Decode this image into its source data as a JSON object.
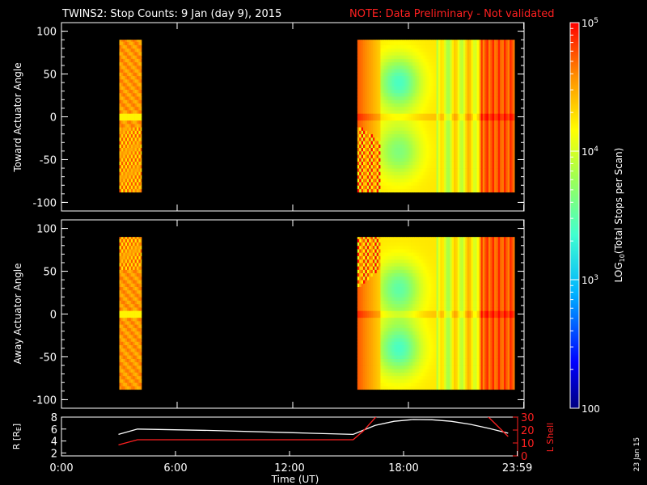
{
  "header": {
    "title": "TWINS2: Stop Counts:  9 Jan (day   9), 2015",
    "note": "NOTE: Data Preliminary - Not validated",
    "note_color": "#ff2020"
  },
  "footer": {
    "date_stamp": "23 Jan 15"
  },
  "chart_data": [
    {
      "id": "toward",
      "type": "heatmap",
      "ylabel": "Toward Actuator Angle",
      "ylim": [
        -110,
        110
      ],
      "yticks": [
        100,
        50,
        0,
        -50,
        -100
      ],
      "xlim": [
        0,
        24
      ],
      "data_extent_y": [
        -88,
        90
      ],
      "data_blocks": [
        {
          "x_start": 3.0,
          "x_end": 4.15
        },
        {
          "x_start": 15.35,
          "x_end": 23.5
        }
      ],
      "colorscale": "log10",
      "regions": [
        {
          "x_range": [
            3.0,
            4.15
          ],
          "y_range": [
            -88,
            90
          ],
          "log10_value": 4.6,
          "note": "orange with yellow/cyan streaks"
        },
        {
          "x_range": [
            15.35,
            16.5
          ],
          "y_range": [
            -88,
            -10
          ],
          "log10_value": 4.7,
          "note": "striped orange/green pattern"
        },
        {
          "x_range": [
            16.5,
            19.5
          ],
          "y_range": [
            -88,
            90
          ],
          "log10_value": 3.6,
          "note": "cyan minimum near y=40"
        },
        {
          "x_range": [
            19.5,
            22.0
          ],
          "y_range": [
            -88,
            90
          ],
          "log10_value": 4.1,
          "note": "yellow-green bands"
        },
        {
          "x_range": [
            22.0,
            23.5
          ],
          "y_range": [
            -88,
            90
          ],
          "log10_value": 4.8,
          "note": "orange/red"
        }
      ]
    },
    {
      "id": "away",
      "type": "heatmap",
      "ylabel": "Away Actuator Angle",
      "ylim": [
        -110,
        110
      ],
      "yticks": [
        100,
        50,
        0,
        -50,
        -100
      ],
      "xlim": [
        0,
        24
      ],
      "data_extent_y": [
        -88,
        90
      ],
      "data_blocks": [
        {
          "x_start": 3.0,
          "x_end": 4.15
        },
        {
          "x_start": 15.35,
          "x_end": 23.5
        }
      ],
      "colorscale": "log10",
      "regions": [
        {
          "x_range": [
            3.0,
            4.15
          ],
          "y_range": [
            -88,
            90
          ],
          "log10_value": 4.6,
          "note": "orange with striped top"
        },
        {
          "x_range": [
            15.35,
            16.5
          ],
          "y_range": [
            30,
            90
          ],
          "log10_value": 4.7,
          "note": "striped orange/green pattern"
        },
        {
          "x_range": [
            16.5,
            19.5
          ],
          "y_range": [
            -88,
            90
          ],
          "log10_value": 3.6,
          "note": "cyan minima near y=30 and y=-40"
        },
        {
          "x_range": [
            19.5,
            22.0
          ],
          "y_range": [
            -88,
            90
          ],
          "log10_value": 4.1,
          "note": "yellow-green bands"
        },
        {
          "x_range": [
            22.0,
            23.5
          ],
          "y_range": [
            -88,
            90
          ],
          "log10_value": 4.8,
          "note": "orange/red"
        }
      ]
    },
    {
      "id": "orbit",
      "type": "line",
      "xlabel": "Time (UT)",
      "xticks": [
        0,
        6,
        12,
        18,
        23.983
      ],
      "xtick_labels": [
        "0:00",
        "6:00",
        "12:00",
        "18:00",
        "23:59"
      ],
      "xlim": [
        0,
        24
      ],
      "left_axis": {
        "label": "R [R",
        "label_sub": "E",
        "label_close": "]",
        "ylim": [
          1.5,
          8
        ],
        "yticks": [
          2,
          4,
          6,
          8
        ]
      },
      "right_axis": {
        "label": "L Shell",
        "ylim": [
          0,
          30
        ],
        "yticks": [
          0,
          10,
          20,
          30
        ],
        "color": "#ff2020"
      },
      "series": [
        {
          "axis": "left",
          "color": "#ffffff",
          "x": [
            3.0,
            4.0,
            8.0,
            12.0,
            15.35,
            16.5,
            17.5,
            18.5,
            19.5,
            20.5,
            21.5,
            22.5,
            23.5
          ],
          "y": [
            5.1,
            6.0,
            5.75,
            5.4,
            5.1,
            6.6,
            7.3,
            7.6,
            7.55,
            7.3,
            6.8,
            6.1,
            5.3
          ]
        },
        {
          "axis": "right",
          "color": "#ff2020",
          "x": [
            3.0,
            4.0,
            8.0,
            12.0,
            15.35,
            15.9,
            16.6,
            22.4,
            23.5
          ],
          "y": [
            8.5,
            12.5,
            12.5,
            12.5,
            12.5,
            19.5,
            31,
            31,
            15
          ]
        }
      ]
    }
  ],
  "colorbar": {
    "label_prefix": "LOG",
    "label_sub": "10",
    "label_rest": "(Total Stops per Scan)",
    "range_log10": [
      2,
      5
    ],
    "tick_labels": [
      {
        "log10": 5,
        "text": "10",
        "sup": "5"
      },
      {
        "log10": 4,
        "text": "10",
        "sup": "4"
      },
      {
        "log10": 3,
        "text": "10",
        "sup": "3"
      },
      {
        "log10": 2,
        "text": "100",
        "sup": ""
      }
    ]
  }
}
